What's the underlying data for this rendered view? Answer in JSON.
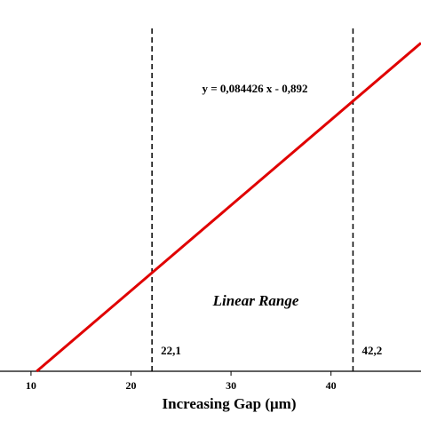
{
  "chart_data": {
    "type": "line",
    "x": [
      10.57,
      49
    ],
    "values": [
      0,
      3.245
    ],
    "color": "#e00000",
    "xlim": [
      6.9,
      49
    ],
    "xticks": [
      10,
      20,
      30,
      40
    ],
    "ylim": [
      0,
      3.67
    ],
    "xlabel": "Increasing Gap (μm)",
    "equation": "y = 0,084426 x - 0,892",
    "annotation": "Linear Range",
    "vlines": [
      {
        "value": 22.1,
        "label": "22,1"
      },
      {
        "value": 42.2,
        "label": "42,2"
      }
    ]
  }
}
